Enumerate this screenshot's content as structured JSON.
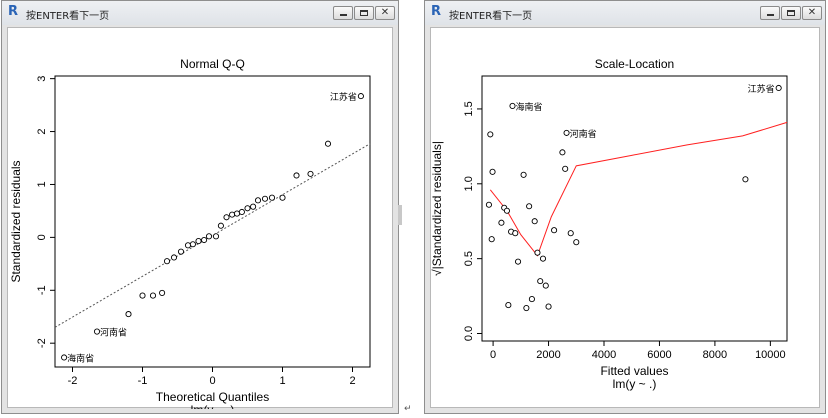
{
  "windows": [
    {
      "id": "left",
      "title": "按ENTER看下一页",
      "buttons": {
        "minimize": "minimize-icon",
        "maximize": "maximize-icon",
        "close": "close-icon"
      }
    },
    {
      "id": "right",
      "title": "按ENTER看下一页",
      "buttons": {
        "minimize": "minimize-icon",
        "maximize": "maximize-icon",
        "close": "close-icon"
      }
    }
  ],
  "edge_mark": "↵",
  "chart_data": [
    {
      "type": "scatter",
      "title": "Normal Q-Q",
      "xlabel": "Theoretical Quantiles",
      "ylabel": "Standardized residuals",
      "subtitle": "lm(y ~ .)",
      "xlim": [
        -2.25,
        2.25
      ],
      "ylim": [
        -2.45,
        3.05
      ],
      "xticks": [
        -2,
        -1,
        0,
        1,
        2
      ],
      "yticks": [
        -2,
        -1,
        0,
        1,
        2,
        3
      ],
      "x": [
        -2.12,
        -1.65,
        -1.2,
        -1.0,
        -0.85,
        -0.72,
        -0.65,
        -0.55,
        -0.45,
        -0.35,
        -0.28,
        -0.2,
        -0.12,
        -0.05,
        0.05,
        0.12,
        0.2,
        0.28,
        0.35,
        0.42,
        0.5,
        0.58,
        0.65,
        0.75,
        0.85,
        1.0,
        1.2,
        1.4,
        1.65,
        2.12
      ],
      "y": [
        -2.27,
        -1.78,
        -1.45,
        -1.1,
        -1.1,
        -1.05,
        -0.45,
        -0.38,
        -0.27,
        -0.15,
        -0.13,
        -0.07,
        -0.05,
        0.02,
        0.02,
        0.22,
        0.38,
        0.43,
        0.45,
        0.48,
        0.55,
        0.58,
        0.7,
        0.73,
        0.75,
        0.75,
        1.17,
        1.2,
        1.77,
        2.67
      ],
      "reference_line": {
        "x": [
          -2.25,
          2.25
        ],
        "y": [
          -1.7,
          1.77
        ]
      },
      "point_labels": [
        {
          "text": "海南省",
          "index": 0
        },
        {
          "text": "河南省",
          "index": 1
        },
        {
          "text": "江苏省",
          "index": 29
        }
      ],
      "grid": false
    },
    {
      "type": "scatter",
      "title": "Scale-Location",
      "xlabel": "Fitted values",
      "ylabel": "√|Standardized residuals|",
      "subtitle": "lm(y ~ .)",
      "xlim": [
        -400,
        10600
      ],
      "ylim": [
        -0.05,
        1.72
      ],
      "xticks": [
        0,
        2000,
        4000,
        6000,
        8000,
        10000
      ],
      "yticks": [
        0.0,
        0.5,
        1.0,
        1.5
      ],
      "x": [
        -150,
        -100,
        -50,
        -20,
        300,
        400,
        500,
        550,
        650,
        700,
        800,
        900,
        1100,
        1200,
        1300,
        1400,
        1500,
        1600,
        1700,
        1800,
        1900,
        2000,
        2200,
        2500,
        2600,
        2650,
        2800,
        3000,
        9100,
        10300
      ],
      "y": [
        0.86,
        1.33,
        0.63,
        1.08,
        0.74,
        0.84,
        0.82,
        0.19,
        0.68,
        1.52,
        0.67,
        0.48,
        1.06,
        0.17,
        0.85,
        0.23,
        0.75,
        0.54,
        0.35,
        0.5,
        0.32,
        0.18,
        0.69,
        1.21,
        1.1,
        1.34,
        0.67,
        0.61,
        1.03,
        1.64
      ],
      "smoother": {
        "x": [
          -100,
          500,
          1000,
          1600,
          2100,
          3000,
          5000,
          7000,
          9000,
          10600
        ],
        "y": [
          0.96,
          0.82,
          0.66,
          0.52,
          0.78,
          1.12,
          1.19,
          1.26,
          1.32,
          1.41
        ]
      },
      "point_labels": [
        {
          "text": "海南省",
          "index": 9
        },
        {
          "text": "河南省",
          "index": 25
        },
        {
          "text": "江苏省",
          "index": 29
        }
      ],
      "grid": false
    }
  ]
}
